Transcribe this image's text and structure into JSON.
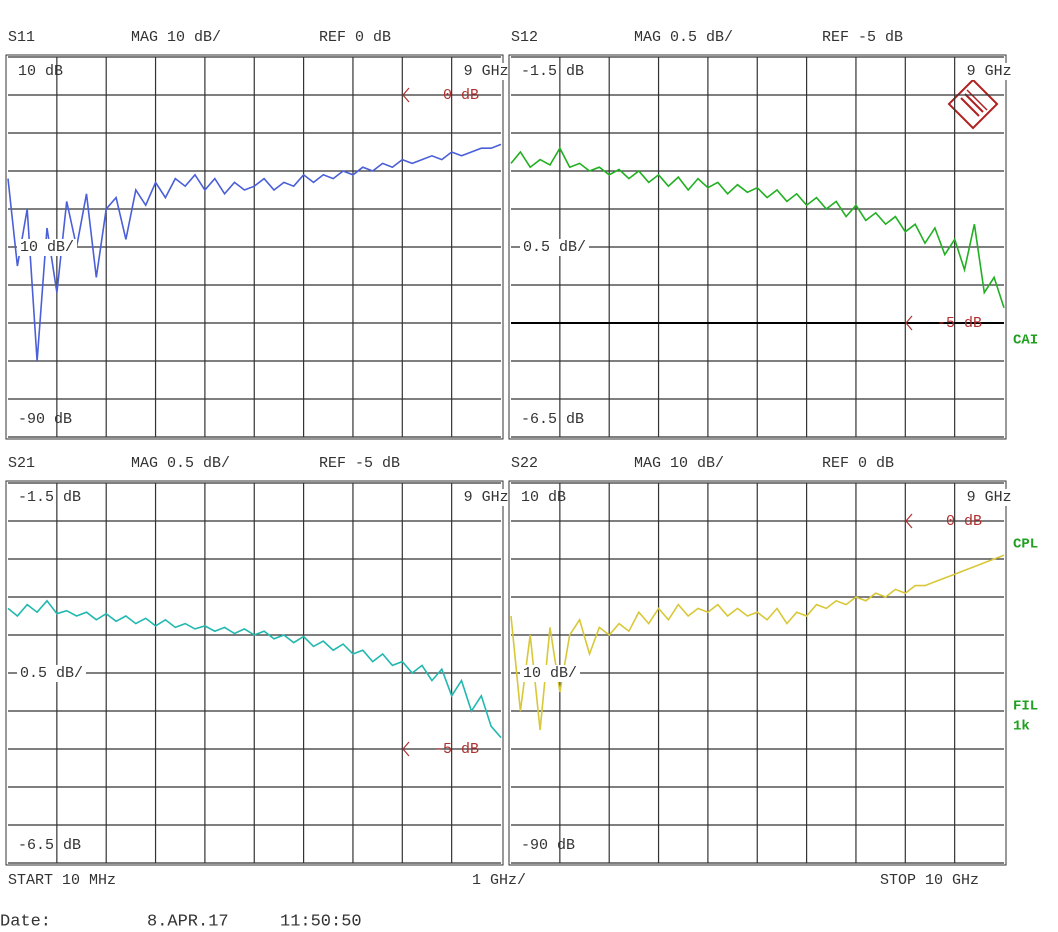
{
  "chart_data": [
    {
      "type": "line",
      "name": "S11",
      "mag": "MAG 10 dB/",
      "ref": "REF 0 dB",
      "scale_label": "10 dB/",
      "color": "#4a5fd8",
      "ref_level": {
        "value": 0,
        "label": "0 dB"
      },
      "ref_line": false,
      "xlim": [
        0.01,
        10
      ],
      "xticks": [
        1,
        2,
        3,
        4,
        5,
        6,
        7,
        8,
        {
          "value": 9,
          "label": "9 GHz"
        }
      ],
      "ylim": [
        -90,
        10
      ],
      "yticks": [
        {
          "value": 10,
          "label": "10 dB"
        },
        0,
        -10,
        -20,
        -30,
        -40,
        -50,
        -60,
        -70,
        -80,
        {
          "value": -90,
          "label": "-90 dB"
        }
      ],
      "x": [
        0.01,
        0.2,
        0.4,
        0.6,
        0.8,
        1.0,
        1.2,
        1.4,
        1.6,
        1.8,
        2.0,
        2.2,
        2.4,
        2.6,
        2.8,
        3.0,
        3.2,
        3.4,
        3.6,
        3.8,
        4.0,
        4.2,
        4.4,
        4.6,
        4.8,
        5.0,
        5.2,
        5.4,
        5.6,
        5.8,
        6.0,
        6.2,
        6.4,
        6.6,
        6.8,
        7.0,
        7.2,
        7.4,
        7.6,
        7.8,
        8.0,
        8.2,
        8.4,
        8.6,
        8.8,
        9.0,
        9.2,
        9.4,
        9.6,
        9.8,
        10
      ],
      "values": [
        -22,
        -45,
        -30,
        -70,
        -35,
        -52,
        -28,
        -40,
        -26,
        -48,
        -30,
        -27,
        -38,
        -25,
        -29,
        -23,
        -27,
        -22,
        -24,
        -21,
        -25,
        -22,
        -26,
        -23,
        -25,
        -24,
        -22,
        -25,
        -23,
        -24,
        -21,
        -23,
        -21,
        -22,
        -20,
        -21,
        -19,
        -20,
        -18,
        -19,
        -17,
        -18,
        -17,
        -16,
        -17,
        -15,
        -16,
        -15,
        -14,
        -14,
        -13
      ]
    },
    {
      "type": "line",
      "name": "S12",
      "mag": "MAG 0.5 dB/",
      "ref": "REF -5 dB",
      "scale_label": "0.5 dB/",
      "color": "#22b022",
      "ref_level": {
        "value": -5,
        "label": "-5 dB"
      },
      "ref_line": true,
      "xlim": [
        0.01,
        10
      ],
      "xticks": [
        1,
        2,
        3,
        4,
        5,
        6,
        7,
        8,
        {
          "value": 9,
          "label": "9 GHz"
        }
      ],
      "ylim": [
        -6.5,
        -1.5
      ],
      "yticks": [
        {
          "value": -1.5,
          "label": "-1.5 dB"
        },
        -2,
        -2.5,
        -3,
        -3.5,
        -4,
        -4.5,
        -5,
        -5.5,
        -6,
        {
          "value": -6.5,
          "label": "-6.5 dB"
        }
      ],
      "x": [
        0.01,
        0.2,
        0.4,
        0.6,
        0.8,
        1.0,
        1.2,
        1.4,
        1.6,
        1.8,
        2.0,
        2.2,
        2.4,
        2.6,
        2.8,
        3.0,
        3.2,
        3.4,
        3.6,
        3.8,
        4.0,
        4.2,
        4.4,
        4.6,
        4.8,
        5.0,
        5.2,
        5.4,
        5.6,
        5.8,
        6.0,
        6.2,
        6.4,
        6.6,
        6.8,
        7.0,
        7.2,
        7.4,
        7.6,
        7.8,
        8.0,
        8.2,
        8.4,
        8.6,
        8.8,
        9.0,
        9.2,
        9.4,
        9.6,
        9.8,
        10
      ],
      "values": [
        -2.9,
        -2.75,
        -2.95,
        -2.85,
        -2.92,
        -2.7,
        -2.95,
        -2.9,
        -3.0,
        -2.95,
        -3.05,
        -2.98,
        -3.1,
        -3.0,
        -3.15,
        -3.05,
        -3.2,
        -3.08,
        -3.25,
        -3.1,
        -3.22,
        -3.15,
        -3.3,
        -3.18,
        -3.28,
        -3.22,
        -3.35,
        -3.25,
        -3.4,
        -3.3,
        -3.45,
        -3.35,
        -3.5,
        -3.4,
        -3.6,
        -3.45,
        -3.65,
        -3.55,
        -3.7,
        -3.6,
        -3.8,
        -3.7,
        -3.95,
        -3.75,
        -4.1,
        -3.9,
        -4.3,
        -3.7,
        -4.6,
        -4.4,
        -4.8
      ]
    },
    {
      "type": "line",
      "name": "S21",
      "mag": "MAG 0.5 dB/",
      "ref": "REF -5 dB",
      "scale_label": "0.5 dB/",
      "color": "#22b8b0",
      "ref_level": {
        "value": -5,
        "label": "-5 dB"
      },
      "ref_line": false,
      "xlim": [
        0.01,
        10
      ],
      "xticks": [
        1,
        2,
        3,
        4,
        5,
        6,
        7,
        8,
        {
          "value": 9,
          "label": "9 GHz"
        }
      ],
      "ylim": [
        -6.5,
        -1.5
      ],
      "yticks": [
        {
          "value": -1.5,
          "label": "-1.5 dB"
        },
        -2,
        -2.5,
        -3,
        -3.5,
        -4,
        -4.5,
        -5,
        -5.5,
        -6,
        {
          "value": -6.5,
          "label": "-6.5 dB"
        }
      ],
      "x": [
        0.01,
        0.2,
        0.4,
        0.6,
        0.8,
        1.0,
        1.2,
        1.4,
        1.6,
        1.8,
        2.0,
        2.2,
        2.4,
        2.6,
        2.8,
        3.0,
        3.2,
        3.4,
        3.6,
        3.8,
        4.0,
        4.2,
        4.4,
        4.6,
        4.8,
        5.0,
        5.2,
        5.4,
        5.6,
        5.8,
        6.0,
        6.2,
        6.4,
        6.6,
        6.8,
        7.0,
        7.2,
        7.4,
        7.6,
        7.8,
        8.0,
        8.2,
        8.4,
        8.6,
        8.8,
        9.0,
        9.2,
        9.4,
        9.6,
        9.8,
        10
      ],
      "values": [
        -3.15,
        -3.25,
        -3.1,
        -3.2,
        -3.05,
        -3.22,
        -3.18,
        -3.25,
        -3.2,
        -3.3,
        -3.22,
        -3.32,
        -3.25,
        -3.35,
        -3.28,
        -3.38,
        -3.3,
        -3.4,
        -3.35,
        -3.42,
        -3.38,
        -3.45,
        -3.4,
        -3.48,
        -3.42,
        -3.5,
        -3.45,
        -3.55,
        -3.5,
        -3.6,
        -3.52,
        -3.65,
        -3.58,
        -3.7,
        -3.62,
        -3.75,
        -3.7,
        -3.85,
        -3.75,
        -3.9,
        -3.85,
        -4.0,
        -3.9,
        -4.1,
        -3.95,
        -4.3,
        -4.1,
        -4.5,
        -4.3,
        -4.7,
        -4.85
      ]
    },
    {
      "type": "line",
      "name": "S22",
      "mag": "MAG 10 dB/",
      "ref": "REF 0 dB",
      "scale_label": "10 dB/",
      "color": "#d8c838",
      "ref_level": {
        "value": 0,
        "label": "0 dB"
      },
      "ref_line": false,
      "xlim": [
        0.01,
        10
      ],
      "xticks": [
        1,
        2,
        3,
        4,
        5,
        6,
        7,
        8,
        {
          "value": 9,
          "label": "9 GHz"
        }
      ],
      "ylim": [
        -90,
        10
      ],
      "yticks": [
        {
          "value": 10,
          "label": "10 dB"
        },
        0,
        -10,
        -20,
        -30,
        -40,
        -50,
        -60,
        -70,
        -80,
        {
          "value": -90,
          "label": "-90 dB"
        }
      ],
      "x": [
        0.01,
        0.2,
        0.4,
        0.6,
        0.8,
        1.0,
        1.2,
        1.4,
        1.6,
        1.8,
        2.0,
        2.2,
        2.4,
        2.6,
        2.8,
        3.0,
        3.2,
        3.4,
        3.6,
        3.8,
        4.0,
        4.2,
        4.4,
        4.6,
        4.8,
        5.0,
        5.2,
        5.4,
        5.6,
        5.8,
        6.0,
        6.2,
        6.4,
        6.6,
        6.8,
        7.0,
        7.2,
        7.4,
        7.6,
        7.8,
        8.0,
        8.2,
        8.4,
        8.6,
        8.8,
        9.0,
        9.2,
        9.4,
        9.6,
        9.8,
        10
      ],
      "values": [
        -25,
        -50,
        -30,
        -55,
        -28,
        -45,
        -30,
        -26,
        -35,
        -28,
        -30,
        -27,
        -29,
        -24,
        -27,
        -23,
        -26,
        -22,
        -25,
        -23,
        -24,
        -22,
        -25,
        -23,
        -25,
        -24,
        -26,
        -23,
        -27,
        -24,
        -25,
        -22,
        -23,
        -21,
        -22,
        -20,
        -21,
        -19,
        -20,
        -18,
        -19,
        -17,
        -17,
        -16,
        -15,
        -14,
        -13,
        -12,
        -11,
        -10,
        -9
      ]
    }
  ],
  "side_labels": [
    "CAI",
    "CPL",
    "FIL",
    "1k"
  ],
  "footer": {
    "start": "START 10 MHz",
    "div": "1 GHz/",
    "stop": "STOP 10 GHz"
  },
  "date": {
    "label": "Date:",
    "date": "8.APR.17",
    "time": "11:50:50"
  }
}
